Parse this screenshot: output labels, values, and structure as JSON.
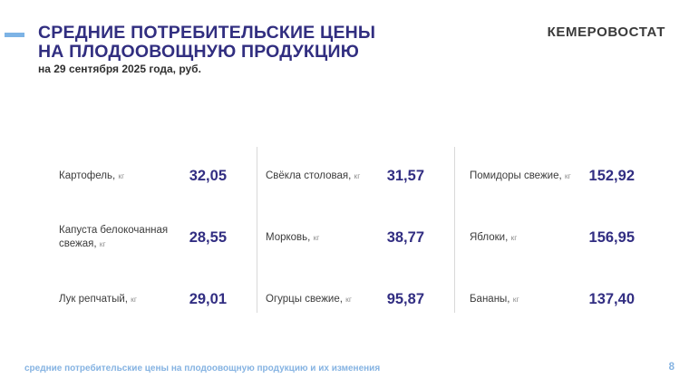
{
  "header": {
    "title_line1": "СРЕДНИЕ ПОТРЕБИТЕЛЬСКИЕ ЦЕНЫ",
    "title_line2": "НА ПЛОДООВОЩНУЮ ПРОДУКЦИЮ",
    "subtitle": "на 29 сентября 2025 года, руб.",
    "logo": "КЕМЕРОВОСТАТ"
  },
  "price_table": {
    "columns": [
      {
        "items": [
          {
            "name": "Картофель,",
            "unit": "кг",
            "value": "32,05"
          },
          {
            "name": "Капуста белокочанная свежая,",
            "unit": "кг",
            "value": "28,55"
          },
          {
            "name": "Лук репчатый,",
            "unit": "кг",
            "value": "29,01"
          }
        ]
      },
      {
        "items": [
          {
            "name": "Свёкла столовая,",
            "unit": "кг",
            "value": "31,57"
          },
          {
            "name": "Морковь,",
            "unit": "кг",
            "value": "38,77"
          },
          {
            "name": "Огурцы свежие,",
            "unit": "кг",
            "value": "95,87"
          }
        ]
      },
      {
        "items": [
          {
            "name": "Помидоры свежие,",
            "unit": "кг",
            "value": "152,92"
          },
          {
            "name": "Яблоки,",
            "unit": "кг",
            "value": "156,95"
          },
          {
            "name": "Бананы,",
            "unit": "кг",
            "value": "137,40"
          }
        ]
      }
    ]
  },
  "footer": {
    "link": "средние потребительские цены на плодоовощную продукцию и их изменения",
    "page": "8"
  },
  "colors": {
    "accent_bar": "#7db3e5",
    "title": "#312e80",
    "value": "#322e82",
    "label": "#3c3c3c",
    "unit": "#8f8f8f",
    "divider": "#d9d9d9",
    "footer_link": "#85b3e2",
    "logo": "#3a3a3a"
  }
}
